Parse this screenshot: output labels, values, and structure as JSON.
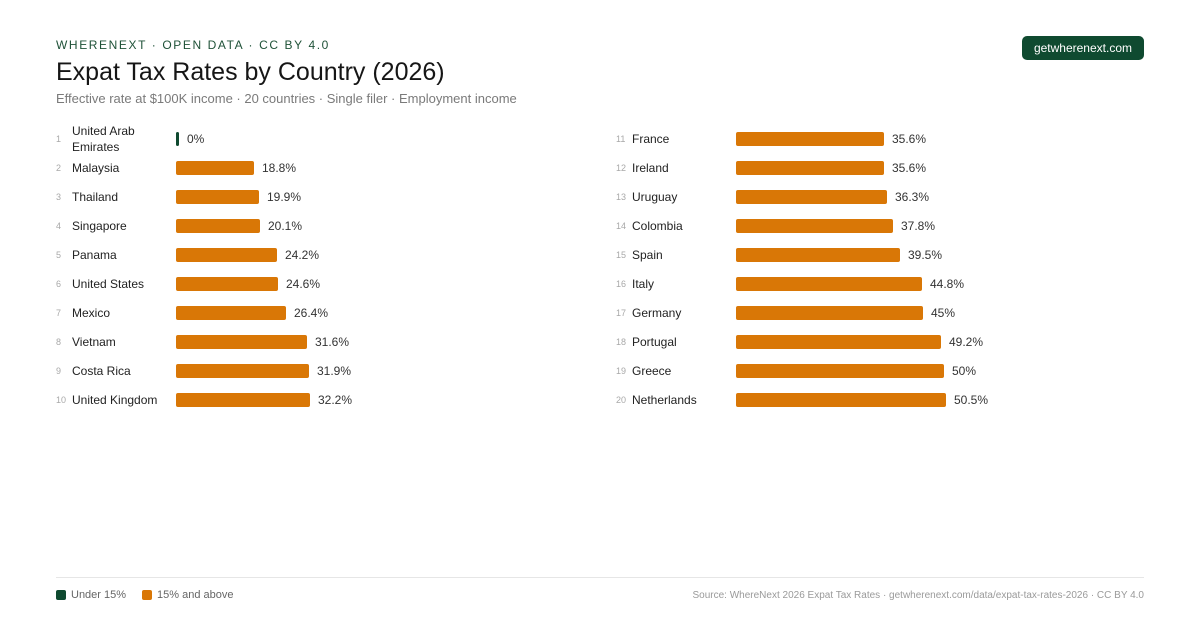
{
  "header": {
    "eyebrow": "WHERENEXT · OPEN DATA · CC BY 4.0",
    "brand": "getwherenext.com"
  },
  "chart_data": {
    "type": "bar",
    "title": "Expat Tax Rates by Country (2026)",
    "subtitle": "Effective rate at $100K income · 20 countries · Single filer · Employment income",
    "threshold": 15,
    "max_value": 50.5,
    "colors": {
      "low": "#0f4a30",
      "high": "#d97706"
    },
    "rows": [
      {
        "rank": "1",
        "country": "United Arab Emirates",
        "value": 0,
        "label": "0%"
      },
      {
        "rank": "2",
        "country": "Malaysia",
        "value": 18.8,
        "label": "18.8%"
      },
      {
        "rank": "3",
        "country": "Thailand",
        "value": 19.9,
        "label": "19.9%"
      },
      {
        "rank": "4",
        "country": "Singapore",
        "value": 20.1,
        "label": "20.1%"
      },
      {
        "rank": "5",
        "country": "Panama",
        "value": 24.2,
        "label": "24.2%"
      },
      {
        "rank": "6",
        "country": "United States",
        "value": 24.6,
        "label": "24.6%"
      },
      {
        "rank": "7",
        "country": "Mexico",
        "value": 26.4,
        "label": "26.4%"
      },
      {
        "rank": "8",
        "country": "Vietnam",
        "value": 31.6,
        "label": "31.6%"
      },
      {
        "rank": "9",
        "country": "Costa Rica",
        "value": 31.9,
        "label": "31.9%"
      },
      {
        "rank": "10",
        "country": "United Kingdom",
        "value": 32.2,
        "label": "32.2%"
      },
      {
        "rank": "11",
        "country": "France",
        "value": 35.6,
        "label": "35.6%"
      },
      {
        "rank": "12",
        "country": "Ireland",
        "value": 35.6,
        "label": "35.6%"
      },
      {
        "rank": "13",
        "country": "Uruguay",
        "value": 36.3,
        "label": "36.3%"
      },
      {
        "rank": "14",
        "country": "Colombia",
        "value": 37.8,
        "label": "37.8%"
      },
      {
        "rank": "15",
        "country": "Spain",
        "value": 39.5,
        "label": "39.5%"
      },
      {
        "rank": "16",
        "country": "Italy",
        "value": 44.8,
        "label": "44.8%"
      },
      {
        "rank": "17",
        "country": "Germany",
        "value": 45,
        "label": "45%"
      },
      {
        "rank": "18",
        "country": "Portugal",
        "value": 49.2,
        "label": "49.2%"
      },
      {
        "rank": "19",
        "country": "Greece",
        "value": 50,
        "label": "50%"
      },
      {
        "rank": "20",
        "country": "Netherlands",
        "value": 50.5,
        "label": "50.5%"
      }
    ],
    "legend": [
      {
        "label": "Under 15%",
        "color": "#0f4a30"
      },
      {
        "label": "15% and above",
        "color": "#d97706"
      }
    ]
  },
  "footer": {
    "source": "Source: WhereNext 2026 Expat Tax Rates · getwherenext.com/data/expat-tax-rates-2026 · CC BY 4.0"
  }
}
